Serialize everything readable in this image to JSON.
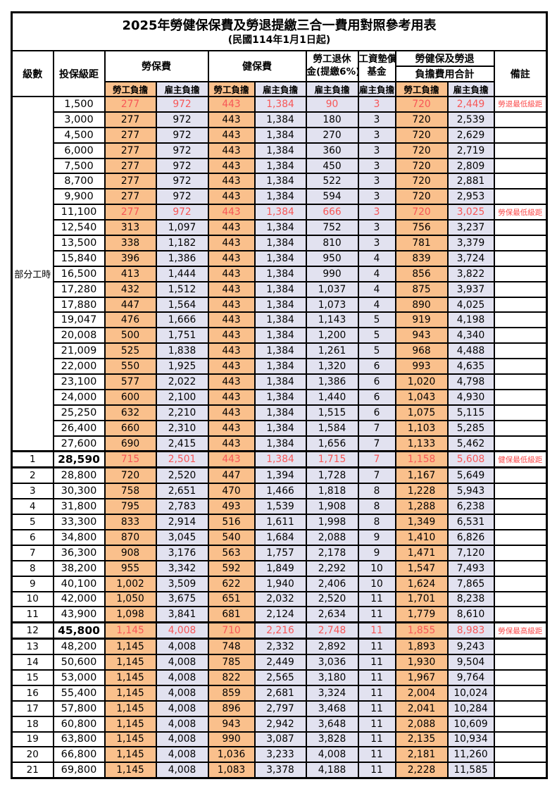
{
  "title": "2025年勞健保保費及勞退提繳三合一費用對照參考用表",
  "subtitle": "(民國114年1月1日起)",
  "colors": {
    "employee_column_bg": "#FAC08C",
    "employer_column_bg": "#E2E2F0",
    "highlight_text": "#F75757",
    "remark_text": "#FB4B4B",
    "border": "#000000"
  },
  "table": {
    "headers": {
      "level": "級數",
      "bracket": "投保級距",
      "labor_insurance": "勞保費",
      "health_insurance": "健保費",
      "pension_line1": "勞工退休",
      "pension_line2": "金(提繳6%)",
      "wage_fund_line1": "工資墊償",
      "wage_fund_line2": "基金",
      "total_line1": "勞健保及勞退",
      "total_line2": "負擔費用合計",
      "remark": "備註",
      "employee": "勞工負擔",
      "employer": "雇主負擔"
    },
    "group_label": "部分工時",
    "rows": [
      {
        "level": "",
        "salary": "1,500",
        "values": [
          "277",
          "972",
          "443",
          "1,384",
          "90",
          "3",
          "720",
          "2,449"
        ],
        "remark": "勞退最低級距",
        "red": true,
        "bold": false,
        "thick": false
      },
      {
        "level": "",
        "salary": "3,000",
        "values": [
          "277",
          "972",
          "443",
          "1,384",
          "180",
          "3",
          "720",
          "2,539"
        ],
        "remark": "",
        "red": false,
        "bold": false,
        "thick": false
      },
      {
        "level": "",
        "salary": "4,500",
        "values": [
          "277",
          "972",
          "443",
          "1,384",
          "270",
          "3",
          "720",
          "2,629"
        ],
        "remark": "",
        "red": false,
        "bold": false,
        "thick": false
      },
      {
        "level": "",
        "salary": "6,000",
        "values": [
          "277",
          "972",
          "443",
          "1,384",
          "360",
          "3",
          "720",
          "2,719"
        ],
        "remark": "",
        "red": false,
        "bold": false,
        "thick": false
      },
      {
        "level": "",
        "salary": "7,500",
        "values": [
          "277",
          "972",
          "443",
          "1,384",
          "450",
          "3",
          "720",
          "2,809"
        ],
        "remark": "",
        "red": false,
        "bold": false,
        "thick": false
      },
      {
        "level": "",
        "salary": "8,700",
        "values": [
          "277",
          "972",
          "443",
          "1,384",
          "522",
          "3",
          "720",
          "2,881"
        ],
        "remark": "",
        "red": false,
        "bold": false,
        "thick": false
      },
      {
        "level": "",
        "salary": "9,900",
        "values": [
          "277",
          "972",
          "443",
          "1,384",
          "594",
          "3",
          "720",
          "2,953"
        ],
        "remark": "",
        "red": false,
        "bold": false,
        "thick": false
      },
      {
        "level": "",
        "salary": "11,100",
        "values": [
          "277",
          "972",
          "443",
          "1,384",
          "666",
          "3",
          "720",
          "3,025"
        ],
        "remark": "勞保最低級距",
        "red": true,
        "bold": false,
        "thick": false
      },
      {
        "level": "",
        "salary": "12,540",
        "values": [
          "313",
          "1,097",
          "443",
          "1,384",
          "752",
          "3",
          "756",
          "3,237"
        ],
        "remark": "",
        "red": false,
        "bold": false,
        "thick": false
      },
      {
        "level": "",
        "salary": "13,500",
        "values": [
          "338",
          "1,182",
          "443",
          "1,384",
          "810",
          "3",
          "781",
          "3,379"
        ],
        "remark": "",
        "red": false,
        "bold": false,
        "thick": false
      },
      {
        "level": "",
        "salary": "15,840",
        "values": [
          "396",
          "1,386",
          "443",
          "1,384",
          "950",
          "4",
          "839",
          "3,724"
        ],
        "remark": "",
        "red": false,
        "bold": false,
        "thick": false
      },
      {
        "level": "",
        "salary": "16,500",
        "values": [
          "413",
          "1,444",
          "443",
          "1,384",
          "990",
          "4",
          "856",
          "3,822"
        ],
        "remark": "",
        "red": false,
        "bold": false,
        "thick": false
      },
      {
        "level": "",
        "salary": "17,280",
        "values": [
          "432",
          "1,512",
          "443",
          "1,384",
          "1,037",
          "4",
          "875",
          "3,937"
        ],
        "remark": "",
        "red": false,
        "bold": false,
        "thick": false
      },
      {
        "level": "",
        "salary": "17,880",
        "values": [
          "447",
          "1,564",
          "443",
          "1,384",
          "1,073",
          "4",
          "890",
          "4,025"
        ],
        "remark": "",
        "red": false,
        "bold": false,
        "thick": false
      },
      {
        "level": "",
        "salary": "19,047",
        "values": [
          "476",
          "1,666",
          "443",
          "1,384",
          "1,143",
          "5",
          "919",
          "4,198"
        ],
        "remark": "",
        "red": false,
        "bold": false,
        "thick": false
      },
      {
        "level": "",
        "salary": "20,008",
        "values": [
          "500",
          "1,751",
          "443",
          "1,384",
          "1,200",
          "5",
          "943",
          "4,340"
        ],
        "remark": "",
        "red": false,
        "bold": false,
        "thick": false
      },
      {
        "level": "",
        "salary": "21,009",
        "values": [
          "525",
          "1,838",
          "443",
          "1,384",
          "1,261",
          "5",
          "968",
          "4,488"
        ],
        "remark": "",
        "red": false,
        "bold": false,
        "thick": false
      },
      {
        "level": "",
        "salary": "22,000",
        "values": [
          "550",
          "1,925",
          "443",
          "1,384",
          "1,320",
          "6",
          "993",
          "4,635"
        ],
        "remark": "",
        "red": false,
        "bold": false,
        "thick": false
      },
      {
        "level": "",
        "salary": "23,100",
        "values": [
          "577",
          "2,022",
          "443",
          "1,384",
          "1,386",
          "6",
          "1,020",
          "4,798"
        ],
        "remark": "",
        "red": false,
        "bold": false,
        "thick": false
      },
      {
        "level": "",
        "salary": "24,000",
        "values": [
          "600",
          "2,100",
          "443",
          "1,384",
          "1,440",
          "6",
          "1,043",
          "4,930"
        ],
        "remark": "",
        "red": false,
        "bold": false,
        "thick": false
      },
      {
        "level": "",
        "salary": "25,250",
        "values": [
          "632",
          "2,210",
          "443",
          "1,384",
          "1,515",
          "6",
          "1,075",
          "5,115"
        ],
        "remark": "",
        "red": false,
        "bold": false,
        "thick": false
      },
      {
        "level": "",
        "salary": "26,400",
        "values": [
          "660",
          "2,310",
          "443",
          "1,384",
          "1,584",
          "7",
          "1,103",
          "5,285"
        ],
        "remark": "",
        "red": false,
        "bold": false,
        "thick": false
      },
      {
        "level": "",
        "salary": "27,600",
        "values": [
          "690",
          "2,415",
          "443",
          "1,384",
          "1,656",
          "7",
          "1,133",
          "5,462"
        ],
        "remark": "",
        "red": false,
        "bold": false,
        "thick": false
      },
      {
        "level": "1",
        "salary": "28,590",
        "values": [
          "715",
          "2,501",
          "443",
          "1,384",
          "1,715",
          "7",
          "1,158",
          "5,608"
        ],
        "remark": "健保最低級距",
        "red": true,
        "bold": true,
        "thick": true
      },
      {
        "level": "2",
        "salary": "28,800",
        "values": [
          "720",
          "2,520",
          "447",
          "1,394",
          "1,728",
          "7",
          "1,167",
          "5,649"
        ],
        "remark": "",
        "red": false,
        "bold": false,
        "thick": false
      },
      {
        "level": "3",
        "salary": "30,300",
        "values": [
          "758",
          "2,651",
          "470",
          "1,466",
          "1,818",
          "8",
          "1,228",
          "5,943"
        ],
        "remark": "",
        "red": false,
        "bold": false,
        "thick": false
      },
      {
        "level": "4",
        "salary": "31,800",
        "values": [
          "795",
          "2,783",
          "493",
          "1,539",
          "1,908",
          "8",
          "1,288",
          "6,238"
        ],
        "remark": "",
        "red": false,
        "bold": false,
        "thick": false
      },
      {
        "level": "5",
        "salary": "33,300",
        "values": [
          "833",
          "2,914",
          "516",
          "1,611",
          "1,998",
          "8",
          "1,349",
          "6,531"
        ],
        "remark": "",
        "red": false,
        "bold": false,
        "thick": false
      },
      {
        "level": "6",
        "salary": "34,800",
        "values": [
          "870",
          "3,045",
          "540",
          "1,684",
          "2,088",
          "9",
          "1,410",
          "6,826"
        ],
        "remark": "",
        "red": false,
        "bold": false,
        "thick": false
      },
      {
        "level": "7",
        "salary": "36,300",
        "values": [
          "908",
          "3,176",
          "563",
          "1,757",
          "2,178",
          "9",
          "1,471",
          "7,120"
        ],
        "remark": "",
        "red": false,
        "bold": false,
        "thick": false
      },
      {
        "level": "8",
        "salary": "38,200",
        "values": [
          "955",
          "3,342",
          "592",
          "1,849",
          "2,292",
          "10",
          "1,547",
          "7,493"
        ],
        "remark": "",
        "red": false,
        "bold": false,
        "thick": false
      },
      {
        "level": "9",
        "salary": "40,100",
        "values": [
          "1,002",
          "3,509",
          "622",
          "1,940",
          "2,406",
          "10",
          "1,624",
          "7,865"
        ],
        "remark": "",
        "red": false,
        "bold": false,
        "thick": false
      },
      {
        "level": "10",
        "salary": "42,000",
        "values": [
          "1,050",
          "3,675",
          "651",
          "2,032",
          "2,520",
          "11",
          "1,701",
          "8,238"
        ],
        "remark": "",
        "red": false,
        "bold": false,
        "thick": false
      },
      {
        "level": "11",
        "salary": "43,900",
        "values": [
          "1,098",
          "3,841",
          "681",
          "2,124",
          "2,634",
          "11",
          "1,779",
          "8,610"
        ],
        "remark": "",
        "red": false,
        "bold": false,
        "thick": false
      },
      {
        "level": "12",
        "salary": "45,800",
        "values": [
          "1,145",
          "4,008",
          "710",
          "2,216",
          "2,748",
          "11",
          "1,855",
          "8,983"
        ],
        "remark": "勞保最高級距",
        "red": true,
        "bold": true,
        "thick": true
      },
      {
        "level": "13",
        "salary": "48,200",
        "values": [
          "1,145",
          "4,008",
          "748",
          "2,332",
          "2,892",
          "11",
          "1,893",
          "9,243"
        ],
        "remark": "",
        "red": false,
        "bold": false,
        "thick": false
      },
      {
        "level": "14",
        "salary": "50,600",
        "values": [
          "1,145",
          "4,008",
          "785",
          "2,449",
          "3,036",
          "11",
          "1,930",
          "9,504"
        ],
        "remark": "",
        "red": false,
        "bold": false,
        "thick": false
      },
      {
        "level": "15",
        "salary": "53,000",
        "values": [
          "1,145",
          "4,008",
          "822",
          "2,565",
          "3,180",
          "11",
          "1,967",
          "9,764"
        ],
        "remark": "",
        "red": false,
        "bold": false,
        "thick": false
      },
      {
        "level": "16",
        "salary": "55,400",
        "values": [
          "1,145",
          "4,008",
          "859",
          "2,681",
          "3,324",
          "11",
          "2,004",
          "10,024"
        ],
        "remark": "",
        "red": false,
        "bold": false,
        "thick": false
      },
      {
        "level": "17",
        "salary": "57,800",
        "values": [
          "1,145",
          "4,008",
          "896",
          "2,797",
          "3,468",
          "11",
          "2,041",
          "10,284"
        ],
        "remark": "",
        "red": false,
        "bold": false,
        "thick": false
      },
      {
        "level": "18",
        "salary": "60,800",
        "values": [
          "1,145",
          "4,008",
          "943",
          "2,942",
          "3,648",
          "11",
          "2,088",
          "10,609"
        ],
        "remark": "",
        "red": false,
        "bold": false,
        "thick": false
      },
      {
        "level": "19",
        "salary": "63,800",
        "values": [
          "1,145",
          "4,008",
          "990",
          "3,087",
          "3,828",
          "11",
          "2,135",
          "10,934"
        ],
        "remark": "",
        "red": false,
        "bold": false,
        "thick": false
      },
      {
        "level": "20",
        "salary": "66,800",
        "values": [
          "1,145",
          "4,008",
          "1,036",
          "3,233",
          "4,008",
          "11",
          "2,181",
          "11,260"
        ],
        "remark": "",
        "red": false,
        "bold": false,
        "thick": false
      },
      {
        "level": "21",
        "salary": "69,800",
        "values": [
          "1,145",
          "4,008",
          "1,083",
          "3,378",
          "4,188",
          "11",
          "2,228",
          "11,585"
        ],
        "remark": "",
        "red": false,
        "bold": false,
        "thick": false
      }
    ]
  }
}
